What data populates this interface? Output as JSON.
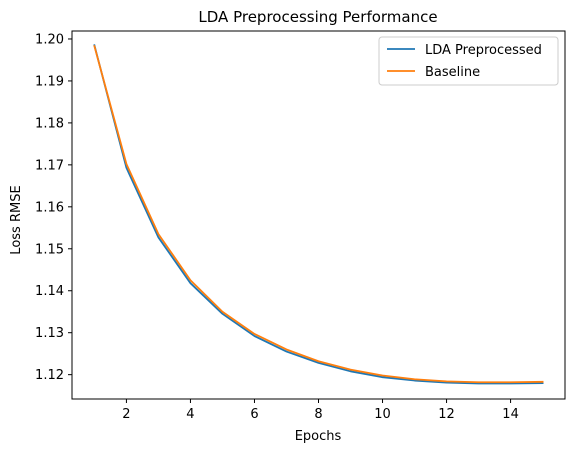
{
  "chart_data": {
    "type": "line",
    "title": "LDA Preprocessing Performance",
    "xlabel": "Epochs",
    "ylabel": "Loss RMSE",
    "x": [
      1,
      2,
      3,
      4,
      5,
      6,
      7,
      8,
      9,
      10,
      11,
      12,
      13,
      14,
      15
    ],
    "xlim": [
      0.3,
      15.7
    ],
    "ylim": [
      1.1142,
      1.2019
    ],
    "xticks": [
      2,
      4,
      6,
      8,
      10,
      12,
      14
    ],
    "yticks": [
      1.12,
      1.13,
      1.14,
      1.15,
      1.16,
      1.17,
      1.18,
      1.19,
      1.2
    ],
    "xtick_labels": [
      "2",
      "4",
      "6",
      "8",
      "10",
      "12",
      "14"
    ],
    "ytick_labels": [
      "1.12",
      "1.13",
      "1.14",
      "1.15",
      "1.16",
      "1.17",
      "1.18",
      "1.19",
      "1.20"
    ],
    "grid": false,
    "legend_position": "top-right",
    "series": [
      {
        "name": "LDA Preprocessed",
        "color": "#1f77b4",
        "values": [
          1.1985,
          1.1693,
          1.1527,
          1.1418,
          1.1345,
          1.1292,
          1.1255,
          1.1228,
          1.1208,
          1.1194,
          1.1186,
          1.1181,
          1.1179,
          1.1179,
          1.118
        ]
      },
      {
        "name": "Baseline",
        "color": "#ff7f0e",
        "values": [
          1.1983,
          1.1702,
          1.1535,
          1.1425,
          1.135,
          1.1297,
          1.126,
          1.1232,
          1.1212,
          1.1198,
          1.1189,
          1.1184,
          1.1182,
          1.1182,
          1.1183
        ]
      }
    ]
  }
}
